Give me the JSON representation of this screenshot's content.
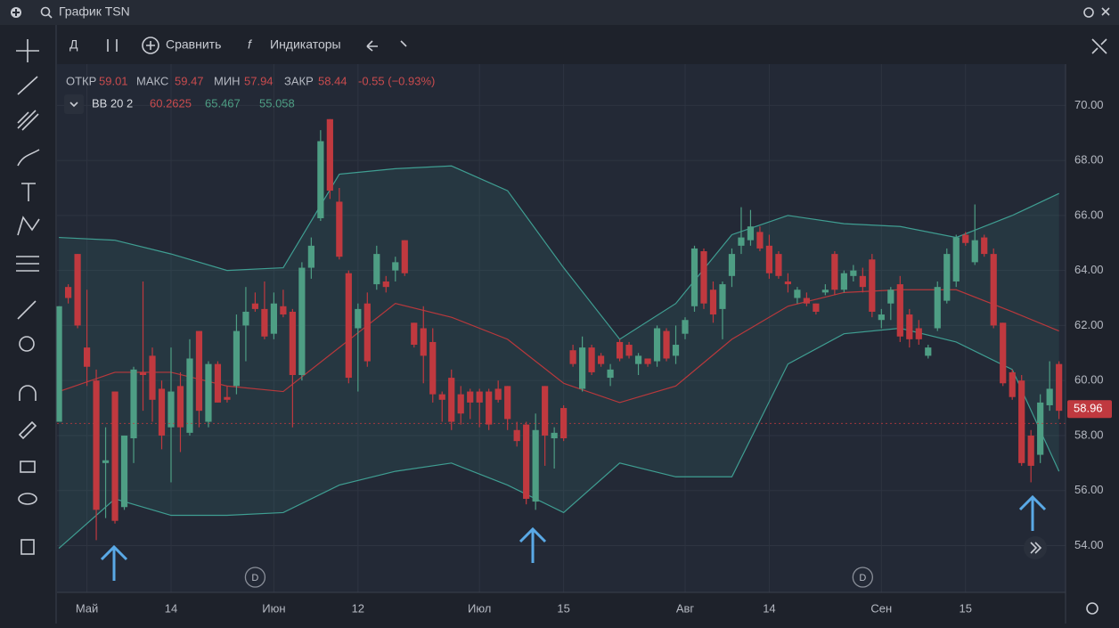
{
  "title": "График TSN",
  "toolbar": {
    "interval": "Д",
    "compare": "Сравнить",
    "indicators": "Индикаторы"
  },
  "legend": {
    "open_label": "ОТКР",
    "open": 59.01,
    "high_label": "МАКС",
    "high": 59.47,
    "low_label": "МИН",
    "low": 57.94,
    "close_label": "ЗАКР",
    "close": 58.44,
    "change": "-0.55 (−0.93%)",
    "indicator": "BB 20 2",
    "bb_middle": 60.2625,
    "bb_upper": 65.467,
    "bb_lower": 55.058
  },
  "chart": {
    "type": "candlestick",
    "candles": {
      "open": [
        58.5,
        63.4,
        64.6,
        61.2,
        60,
        57,
        59.6,
        55.4,
        57.9,
        60.3,
        60.9,
        59.7,
        58.3,
        59.8,
        58.1,
        61.8,
        58.5,
        60.6,
        59.4,
        59.8,
        62,
        62.8,
        62.6,
        61.7,
        62.7,
        62.5,
        60.2,
        64.1,
        65.9,
        69.5,
        66.5,
        63.9,
        61.9,
        62.8,
        63.5,
        63.6,
        64,
        65.1,
        62.1,
        61.9,
        61.4,
        59.5,
        60.1,
        59.5,
        59.6,
        59.6,
        59.6,
        59.7,
        59.8,
        58.2,
        58.4,
        55.6,
        59.8,
        57.9,
        59,
        61.1,
        59.7,
        61.2,
        60.9,
        60.1,
        61.4,
        61.3,
        60.6,
        60.8,
        60.7,
        61.8,
        60.9,
        61.7,
        62.7,
        64.7,
        63.3,
        62.6,
        63.8,
        64.9,
        65.1,
        65.4,
        64.9,
        64.6,
        63.6,
        63,
        63,
        62.8,
        63.2,
        64.6,
        63.3,
        63.8,
        63.8,
        64.4,
        62.2,
        62.8,
        63.5,
        62.4,
        61.9,
        60.9,
        61.9,
        62.9,
        63.6,
        65.3,
        64.3,
        65.2,
        64.6,
        62.1,
        60.3,
        60,
        58,
        57.3,
        59.1,
        60.6
      ],
      "high": [
        62.7,
        63.5,
        64.6,
        63.3,
        60.4,
        58.3,
        59.6,
        58,
        60.5,
        63.6,
        61.2,
        60,
        61.2,
        60.3,
        61.5,
        61.8,
        60.7,
        60.7,
        59.8,
        62.4,
        63.4,
        63.2,
        63.6,
        63.2,
        63.3,
        62.6,
        64.3,
        65.2,
        69.1,
        69.5,
        67,
        64,
        62.8,
        63.2,
        64.9,
        63.8,
        64.5,
        65.1,
        62.1,
        62.7,
        61.9,
        59.6,
        60.4,
        59.8,
        59.7,
        59.7,
        59.7,
        60,
        59.8,
        58.5,
        58.5,
        58.8,
        59.8,
        58.3,
        59.1,
        61.3,
        61.6,
        61.3,
        61,
        60.6,
        61.5,
        61.4,
        61,
        60.8,
        62,
        61.9,
        62,
        62.3,
        64.9,
        64.8,
        63.6,
        63.6,
        64.8,
        66.3,
        66.2,
        65.6,
        65.3,
        64.7,
        63.9,
        63.4,
        63.2,
        62.8,
        63.5,
        64.7,
        64,
        64.2,
        64.1,
        64.6,
        62.6,
        63.4,
        63.8,
        62.6,
        62.2,
        61.3,
        63.6,
        64.8,
        65.3,
        65.4,
        66.4,
        65.3,
        64.8,
        62.1,
        60.4,
        60.2,
        58.2,
        59.5,
        60.7,
        60.7
      ],
      "low": [
        58.5,
        62.8,
        61.9,
        59.8,
        54.2,
        55,
        54.8,
        55.3,
        57,
        58.9,
        58.5,
        57.5,
        56.3,
        57.4,
        58,
        58.3,
        58.3,
        59.2,
        59.2,
        59.5,
        60.7,
        62.5,
        61.5,
        61.5,
        62.3,
        58.3,
        60,
        63.7,
        65.8,
        66.6,
        64.4,
        59.9,
        59.6,
        60.5,
        63.3,
        63.2,
        63.6,
        63.8,
        61.2,
        59.9,
        59.2,
        58.5,
        58.2,
        58.4,
        58.6,
        58.3,
        58.2,
        59.2,
        58.2,
        57.6,
        55.5,
        55.3,
        56.9,
        56.8,
        57.8,
        60.5,
        59.6,
        60.2,
        60.5,
        59.8,
        60.7,
        60.8,
        60.2,
        60.5,
        60.5,
        60.7,
        60.6,
        61.5,
        62.5,
        62.6,
        62.1,
        61.5,
        63.4,
        64.6,
        64.9,
        64.7,
        63.7,
        63.7,
        63.2,
        62.8,
        62.7,
        62.4,
        63.1,
        63.1,
        63.2,
        63.6,
        63.2,
        62.3,
        61.9,
        62.2,
        61.4,
        61.2,
        61.3,
        60.8,
        61.8,
        62.8,
        63.4,
        64.9,
        64.2,
        64.5,
        61.9,
        59.8,
        59.3,
        56.9,
        56.3,
        57,
        58.9,
        58.6
      ],
      "close": [
        62.7,
        63,
        62,
        60.5,
        55.3,
        57.1,
        54.9,
        58,
        60.4,
        60.2,
        59.3,
        58,
        59.6,
        58.3,
        60.8,
        58.9,
        60.6,
        59.2,
        59.3,
        61.8,
        62.5,
        62.6,
        61.6,
        62.8,
        62.4,
        60.2,
        64.1,
        64.9,
        68.7,
        66.9,
        64.5,
        60.1,
        62.6,
        60.7,
        64.6,
        63.4,
        64.3,
        63.9,
        61.3,
        60.9,
        59.5,
        59.3,
        58.5,
        58.8,
        59.2,
        59.2,
        58.4,
        59.3,
        58.6,
        57.8,
        55.7,
        58.2,
        58,
        58.1,
        57.9,
        60.6,
        61.2,
        60.3,
        60.6,
        60.4,
        60.8,
        60.9,
        60.9,
        60.6,
        61.9,
        60.8,
        61.3,
        62.2,
        64.8,
        62.8,
        62.4,
        63.5,
        64.6,
        65.2,
        65.6,
        64.8,
        63.9,
        63.8,
        63.5,
        63.3,
        62.8,
        62.5,
        63.3,
        63.3,
        63.9,
        64,
        63.4,
        62.5,
        62.4,
        63.3,
        61.6,
        61.5,
        61.5,
        61.2,
        63.4,
        64.6,
        65.2,
        65,
        65.1,
        64.6,
        62,
        59.9,
        59.4,
        57,
        56.9,
        59.2,
        59.7,
        58.9
      ]
    },
    "up_color": "#4e9e84",
    "down_color": "#c0393f",
    "bands": {
      "index": [
        0,
        6,
        12,
        18,
        24,
        30,
        36,
        42,
        48,
        54,
        60,
        66,
        72,
        78,
        84,
        90,
        96,
        102,
        107
      ],
      "upper": [
        65.2,
        65.1,
        64.6,
        64.0,
        64.1,
        67.5,
        67.7,
        67.8,
        66.9,
        64.1,
        61.5,
        62.8,
        65.3,
        66.0,
        65.7,
        65.6,
        65.2,
        66.0,
        66.8
      ],
      "middle": [
        59.6,
        60.3,
        60.3,
        59.8,
        59.6,
        61.2,
        62.8,
        62.3,
        61.5,
        59.9,
        59.2,
        59.8,
        61.5,
        62.7,
        63.2,
        63.3,
        63.3,
        62.5,
        61.8
      ],
      "lower": [
        53.9,
        55.7,
        55.1,
        55.1,
        55.2,
        56.2,
        56.7,
        57.0,
        56.2,
        55.2,
        57.0,
        56.5,
        56.5,
        60.6,
        61.7,
        61.9,
        61.4,
        60.4,
        56.7
      ],
      "band_color": "#3f9e92",
      "middle_color": "#b8383c"
    },
    "xlim": [
      -0.2,
      107.7
    ],
    "xticks": [
      {
        "value": 3,
        "label": "Май"
      },
      {
        "value": 12,
        "label": "14"
      },
      {
        "value": 23,
        "label": "Июн"
      },
      {
        "value": 32,
        "label": "12"
      },
      {
        "value": 45,
        "label": "Июл"
      },
      {
        "value": 54,
        "label": "15"
      },
      {
        "value": 67,
        "label": "Авг"
      },
      {
        "value": 76,
        "label": "14"
      },
      {
        "value": 88,
        "label": "Сен"
      },
      {
        "value": 97,
        "label": "15"
      }
    ],
    "ylim": [
      52.3,
      71.5
    ],
    "yticks": [
      {
        "value": 54,
        "label": "54.00"
      },
      {
        "value": 56,
        "label": "56.00"
      },
      {
        "value": 58,
        "label": "58.00"
      },
      {
        "value": 60,
        "label": "60.00"
      },
      {
        "value": 62,
        "label": "62.00"
      },
      {
        "value": 64,
        "label": "64.00"
      },
      {
        "value": 66,
        "label": "66.00"
      },
      {
        "value": 68,
        "label": "68.00"
      },
      {
        "value": 70,
        "label": "70.00"
      }
    ],
    "last_price": {
      "value": 58.96,
      "label": "58.96"
    },
    "events": [
      {
        "value": 21,
        "label": "D"
      },
      {
        "value": 86,
        "label": "D"
      }
    ],
    "grid": true
  }
}
